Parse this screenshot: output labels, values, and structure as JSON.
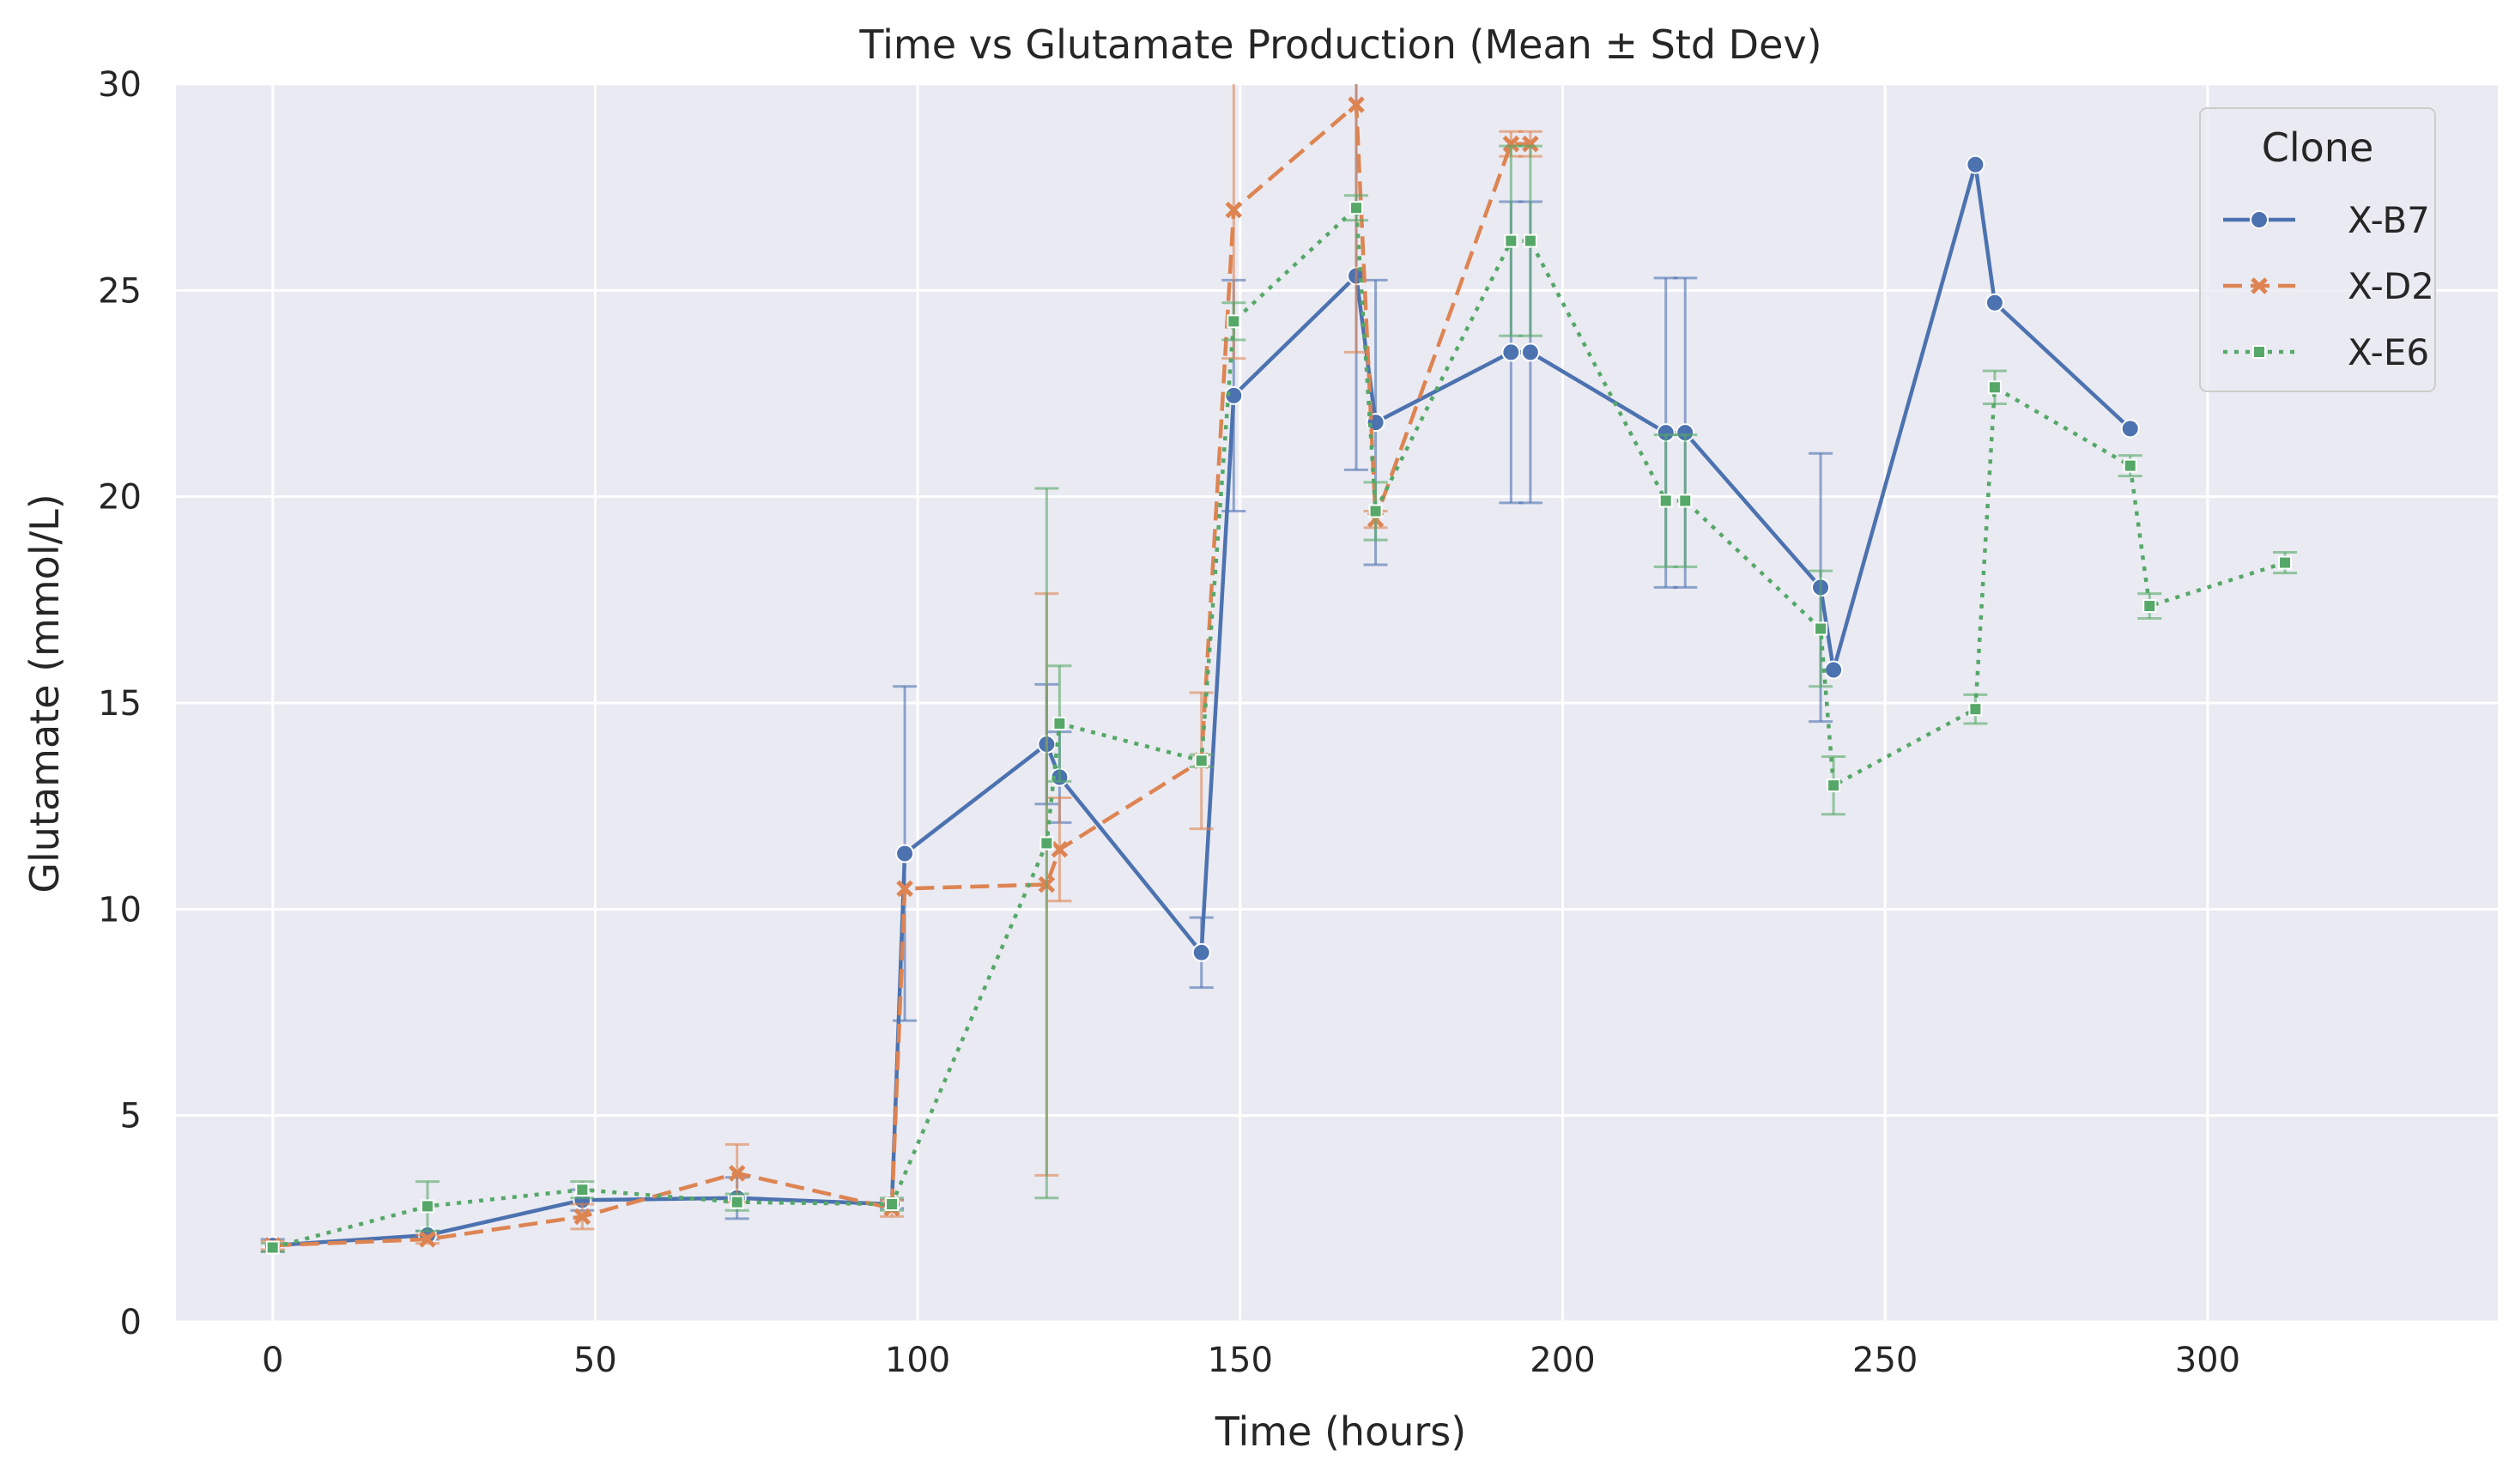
{
  "chart_data": {
    "type": "line",
    "title": "Time vs Glutamate Production (Mean ± Std Dev)",
    "xlabel": "Time (hours)",
    "ylabel": "Glutamate (mmol/L)",
    "xlim": [
      -15,
      345
    ],
    "ylim": [
      0,
      30
    ],
    "xticks": [
      0,
      50,
      100,
      150,
      200,
      250,
      300
    ],
    "yticks": [
      0,
      5,
      10,
      15,
      20,
      25,
      30
    ],
    "grid": true,
    "legend": {
      "title": "Clone",
      "placement": "top-right"
    },
    "series": [
      {
        "name": "X-B7",
        "color": "#4c72b0",
        "marker": "circle",
        "linestyle": "solid",
        "points": [
          {
            "x": 0,
            "y": 1.85,
            "err": 0.15
          },
          {
            "x": 24,
            "y": 2.1,
            "err": 0.1
          },
          {
            "x": 48,
            "y": 2.95,
            "err": 0.25
          },
          {
            "x": 72,
            "y": 3.0,
            "err": 0.5
          },
          {
            "x": 96,
            "y": 2.85,
            "err": 0.1
          },
          {
            "x": 98,
            "y": 11.35,
            "err": 4.05
          },
          {
            "x": 120,
            "y": 14.0,
            "err": 1.45
          },
          {
            "x": 122,
            "y": 13.2,
            "err": 1.1
          },
          {
            "x": 144,
            "y": 8.95,
            "err": 0.85
          },
          {
            "x": 149,
            "y": 22.45,
            "err": 2.8
          },
          {
            "x": 168,
            "y": 25.35,
            "err": 4.7
          },
          {
            "x": 171,
            "y": 21.8,
            "err": 3.45
          },
          {
            "x": 192,
            "y": 23.5,
            "err": 3.65
          },
          {
            "x": 195,
            "y": 23.5,
            "err": 3.65
          },
          {
            "x": 216,
            "y": 21.55,
            "err": 3.75
          },
          {
            "x": 219,
            "y": 21.55,
            "err": 3.75
          },
          {
            "x": 240,
            "y": 17.8,
            "err": 3.25
          },
          {
            "x": 242,
            "y": 15.8,
            "err": 0
          },
          {
            "x": 264,
            "y": 28.05,
            "err": 0
          },
          {
            "x": 267,
            "y": 24.7,
            "err": 0
          },
          {
            "x": 288,
            "y": 21.65,
            "err": 0
          }
        ]
      },
      {
        "name": "X-D2",
        "color": "#dd8452",
        "marker": "x",
        "linestyle": "dashed",
        "points": [
          {
            "x": 0,
            "y": 1.85,
            "err": 0.1
          },
          {
            "x": 24,
            "y": 2.0,
            "err": 0.1
          },
          {
            "x": 48,
            "y": 2.55,
            "err": 0.3
          },
          {
            "x": 72,
            "y": 3.6,
            "err": 0.7
          },
          {
            "x": 96,
            "y": 2.75,
            "err": 0.2
          },
          {
            "x": 98,
            "y": 10.5,
            "err": 0
          },
          {
            "x": 120,
            "y": 10.6,
            "err": 7.05
          },
          {
            "x": 122,
            "y": 11.45,
            "err": 1.25
          },
          {
            "x": 144,
            "y": 13.6,
            "err": 1.65
          },
          {
            "x": 149,
            "y": 26.95,
            "err": 3.6
          },
          {
            "x": 168,
            "y": 29.5,
            "err": 6.0
          },
          {
            "x": 171,
            "y": 19.45,
            "err": 0.2
          },
          {
            "x": 192,
            "y": 28.55,
            "err": 0.3
          },
          {
            "x": 195,
            "y": 28.55,
            "err": 0.3
          }
        ]
      },
      {
        "name": "X-E6",
        "color": "#55a868",
        "marker": "square",
        "linestyle": "dotted",
        "points": [
          {
            "x": 0,
            "y": 1.8,
            "err": 0.1
          },
          {
            "x": 24,
            "y": 2.8,
            "err": 0.6
          },
          {
            "x": 48,
            "y": 3.2,
            "err": 0.2
          },
          {
            "x": 72,
            "y": 2.9,
            "err": 0.2
          },
          {
            "x": 96,
            "y": 2.85,
            "err": 0.15
          },
          {
            "x": 120,
            "y": 11.6,
            "err": 8.6
          },
          {
            "x": 122,
            "y": 14.5,
            "err": 1.4
          },
          {
            "x": 144,
            "y": 13.6,
            "err": 0.15
          },
          {
            "x": 149,
            "y": 24.25,
            "err": 0.45
          },
          {
            "x": 168,
            "y": 27.0,
            "err": 0.3
          },
          {
            "x": 171,
            "y": 19.65,
            "err": 0.7
          },
          {
            "x": 192,
            "y": 26.2,
            "err": 2.3
          },
          {
            "x": 195,
            "y": 26.2,
            "err": 2.3
          },
          {
            "x": 216,
            "y": 19.9,
            "err": 1.6
          },
          {
            "x": 219,
            "y": 19.9,
            "err": 1.6
          },
          {
            "x": 240,
            "y": 16.8,
            "err": 1.4
          },
          {
            "x": 242,
            "y": 13.0,
            "err": 0.7
          },
          {
            "x": 264,
            "y": 14.85,
            "err": 0.35
          },
          {
            "x": 267,
            "y": 22.65,
            "err": 0.4
          },
          {
            "x": 288,
            "y": 20.75,
            "err": 0.25
          },
          {
            "x": 291,
            "y": 17.35,
            "err": 0.3
          },
          {
            "x": 312,
            "y": 18.4,
            "err": 0.25
          }
        ]
      }
    ]
  }
}
